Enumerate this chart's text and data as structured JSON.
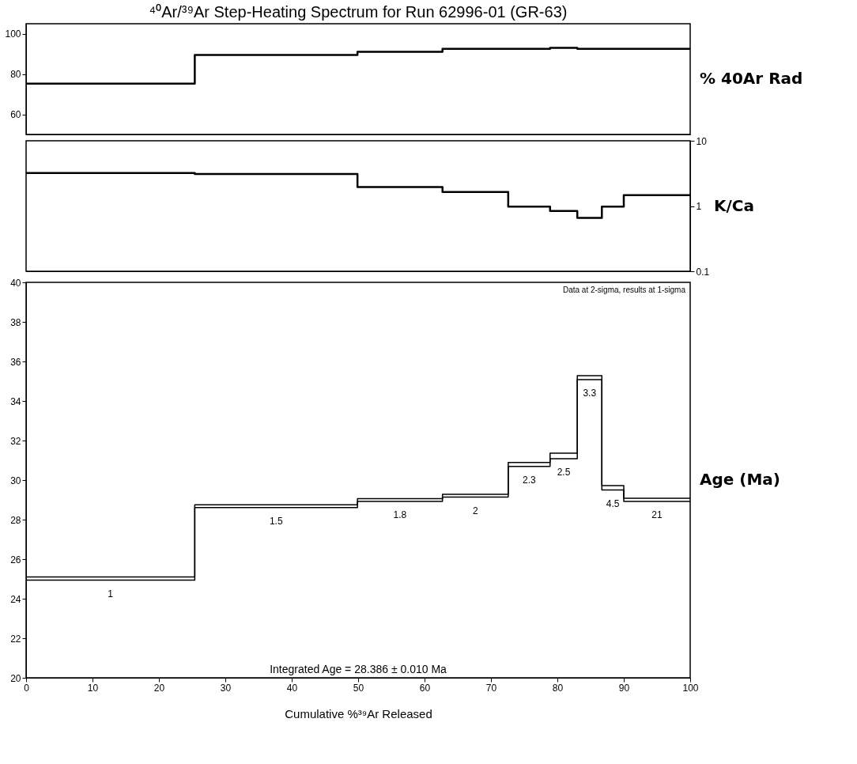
{
  "chart_data": [
    {
      "type": "step",
      "title": "⁴⁰Ar/³⁹Ar Step-Heating Spectrum for Run 62996-01 (GR-63)",
      "ylabel": "% 40Ar Rad",
      "x": [
        0,
        25.4,
        49.9,
        62.7,
        72.6,
        78.9,
        83.0,
        86.7,
        90.0,
        100
      ],
      "series": [
        {
          "color": "#000000",
          "values": [
            75.2,
            89.5,
            91.1,
            92.5,
            92.5,
            93.0,
            92.5,
            92.5,
            92.5,
            92.5
          ]
        }
      ],
      "xlim": [
        0,
        100
      ],
      "ylim": [
        50,
        105
      ],
      "yticks": [
        60,
        80,
        100
      ],
      "grid": false,
      "tick_labels": "y"
    },
    {
      "type": "step",
      "y2label": "K/Ca",
      "x": [
        0,
        25.4,
        49.9,
        62.7,
        72.6,
        78.9,
        83.0,
        86.7,
        90.0,
        100
      ],
      "series": [
        {
          "color": "#000000",
          "axis": "y2",
          "values": [
            3.2,
            3.1,
            1.95,
            1.64,
            0.98,
            0.84,
            0.66,
            0.98,
            1.47,
            1.47
          ]
        }
      ],
      "xlim": [
        0,
        100
      ],
      "y2lim": [
        0.1,
        10
      ],
      "y2ticks": [
        0.1,
        1,
        10
      ],
      "log": "y2",
      "grid": false,
      "tick_labels": "y2"
    },
    {
      "type": "step",
      "ylabel": "Age (Ma)",
      "xlabel": "Cumulative %³⁹Ar Released",
      "x": [
        0,
        25.4,
        49.9,
        62.7,
        72.6,
        78.9,
        83.0,
        86.7,
        90.0,
        100
      ],
      "series": [
        {
          "color": "#000000",
          "values": [
            25.1,
            28.75,
            29.06,
            29.28,
            30.89,
            31.36,
            35.28,
            29.72,
            29.08,
            29.08
          ]
        },
        {
          "color": "#000000",
          "values": [
            24.94,
            28.61,
            28.92,
            29.14,
            30.69,
            31.08,
            35.08,
            29.5,
            28.92,
            28.92
          ]
        }
      ],
      "xlim": [
        0,
        100
      ],
      "xticks": [
        0,
        10,
        20,
        30,
        40,
        50,
        60,
        70,
        80,
        90,
        100
      ],
      "ylim": [
        20,
        40
      ],
      "yticks": [
        20,
        22,
        24,
        26,
        28,
        30,
        32,
        34,
        36,
        38,
        40
      ],
      "grid": false,
      "annotations": [
        "Data at 2-sigma, results at 1-sigma",
        "Integrated Age = 28.386 ± 0.010 Ma",
        "1",
        "1.5",
        "1.8",
        "2",
        "2.3",
        "2.5",
        "3.3",
        "4.5",
        "21"
      ]
    }
  ]
}
